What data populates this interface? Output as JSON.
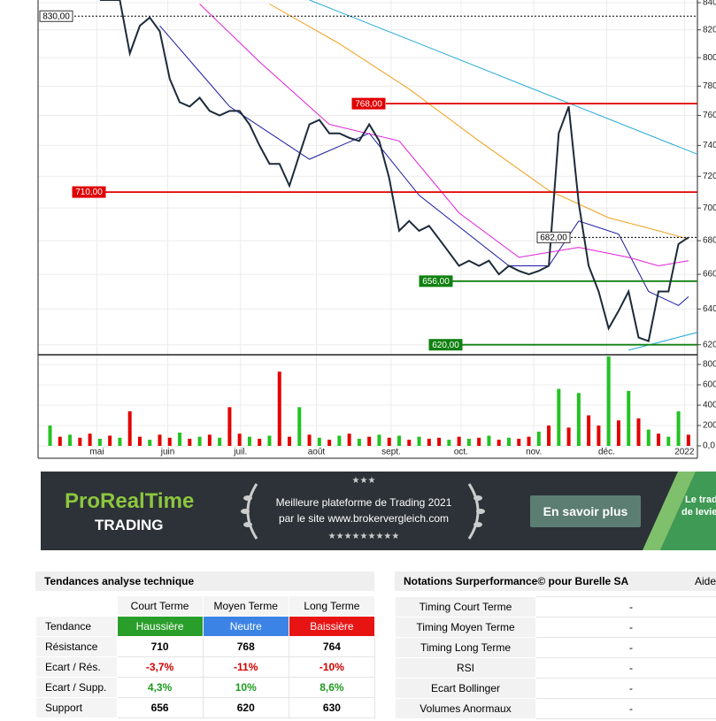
{
  "chart_data": {
    "type": "line",
    "log_scale": true,
    "grid": true,
    "xlim": [
      -6.2,
      59.9
    ],
    "ylim": [
      615,
      842
    ],
    "xticks": [
      {
        "value": -0.3,
        "label": "mai"
      },
      {
        "value": 6.8,
        "label": "juin"
      },
      {
        "value": 14.1,
        "label": "juil."
      },
      {
        "value": 21.7,
        "label": "août"
      },
      {
        "value": 29.2,
        "label": "sept."
      },
      {
        "value": 36.2,
        "label": "oct."
      },
      {
        "value": 43.5,
        "label": "nov."
      },
      {
        "value": 50.8,
        "label": "déc."
      },
      {
        "value": 58.6,
        "label": "2022"
      }
    ],
    "yticks": [
      840,
      820,
      800,
      780,
      760,
      740,
      720,
      700,
      680,
      660,
      640,
      620
    ],
    "price": {
      "color": "#1c2b3a",
      "values": [
        842,
        842,
        842,
        803,
        823,
        829,
        819,
        785,
        769,
        766,
        772,
        763,
        760,
        763,
        763,
        754,
        740,
        728,
        728,
        714,
        734,
        754,
        757,
        748,
        748,
        745,
        743,
        754,
        743,
        719,
        686,
        692,
        686,
        689,
        681,
        673,
        665,
        668,
        665,
        668,
        660,
        665,
        662,
        660,
        662,
        665,
        748,
        766,
        703,
        665,
        650,
        629,
        639,
        650,
        624,
        622,
        650,
        650,
        678,
        682
      ]
    },
    "averages": [
      {
        "color": "#1a1aa0",
        "x": [
          6,
          13,
          21,
          27,
          32,
          41,
          45,
          48,
          52,
          55,
          58,
          59
        ],
        "values": [
          823,
          766,
          731,
          748,
          708,
          665,
          665,
          692,
          684,
          650,
          642,
          647
        ]
      },
      {
        "color": "#e020d8",
        "x": [
          10,
          16,
          23,
          30,
          36,
          42,
          48,
          53,
          56,
          59
        ],
        "values": [
          839,
          797,
          754,
          743,
          697,
          670,
          676,
          670,
          665,
          668
        ]
      },
      {
        "color": "#f0a020",
        "x": [
          17,
          24,
          31,
          38,
          45,
          51,
          56,
          59
        ],
        "values": [
          839,
          810,
          778,
          743,
          711,
          694,
          686,
          681
        ]
      },
      {
        "color": "#22a8d8",
        "x": [
          21,
          60
        ],
        "values": [
          842,
          734
        ]
      },
      {
        "color": "#22a8d8",
        "x": [
          53,
          60
        ],
        "values": [
          617,
          627
        ]
      }
    ],
    "levels": [
      {
        "value": 830,
        "label": "830,00",
        "color": "#000000",
        "dash": true
      },
      {
        "value": 768,
        "label": "768,00",
        "color": "#e00000",
        "dash": false
      },
      {
        "value": 710,
        "label": "710,00",
        "color": "#e00000",
        "dash": false
      },
      {
        "value": 682,
        "label": "682,00",
        "color": "#000000",
        "dash": true
      },
      {
        "value": 656,
        "label": "656,00",
        "color": "#108010",
        "dash": false
      },
      {
        "value": 620,
        "label": "620,00",
        "color": "#108010",
        "dash": false
      }
    ],
    "volume": {
      "ylim": [
        0,
        887
      ],
      "yticks": [
        800,
        600,
        400,
        200,
        {
          "value": 0,
          "label": "0,0"
        }
      ],
      "x": [
        -5,
        -4,
        -3,
        -2,
        -1,
        0,
        1,
        2,
        3,
        4,
        5,
        6,
        7,
        8,
        9,
        10,
        11,
        12,
        13,
        14,
        15,
        16,
        17,
        18,
        19,
        20,
        21,
        22,
        23,
        24,
        25,
        26,
        27,
        28,
        29,
        30,
        31,
        32,
        33,
        34,
        35,
        36,
        37,
        38,
        39,
        40,
        41,
        42,
        43,
        44,
        45,
        46,
        47,
        48,
        49,
        50,
        51,
        52,
        53,
        54,
        55,
        56,
        57,
        58,
        59
      ],
      "values": [
        200,
        90,
        110,
        80,
        120,
        70,
        100,
        80,
        340,
        90,
        60,
        110,
        80,
        130,
        70,
        90,
        110,
        80,
        380,
        120,
        90,
        70,
        100,
        730,
        90,
        380,
        110,
        80,
        60,
        100,
        120,
        70,
        90,
        110,
        80,
        100,
        60,
        90,
        70,
        80,
        60,
        90,
        70,
        80,
        100,
        60,
        80,
        70,
        90,
        140,
        200,
        560,
        180,
        520,
        300,
        200,
        880,
        250,
        540,
        270,
        160,
        120,
        90,
        340,
        110
      ],
      "colors": [
        "#22c322",
        "#e30000",
        "#22c322",
        "#e30000",
        "#e30000",
        "#22c322",
        "#e30000",
        "#22c322",
        "#e30000",
        "#e30000",
        "#22c322",
        "#e30000",
        "#e30000",
        "#22c322",
        "#e30000",
        "#22c322",
        "#e30000",
        "#22c322",
        "#e30000",
        "#e30000",
        "#22c322",
        "#e30000",
        "#22c322",
        "#e30000",
        "#e30000",
        "#22c322",
        "#e30000",
        "#22c322",
        "#e30000",
        "#22c322",
        "#e30000",
        "#22c322",
        "#e30000",
        "#22c322",
        "#e30000",
        "#22c322",
        "#e30000",
        "#22c322",
        "#e30000",
        "#e30000",
        "#22c322",
        "#e30000",
        "#22c322",
        "#e30000",
        "#22c322",
        "#e30000",
        "#22c322",
        "#e30000",
        "#e30000",
        "#22c322",
        "#e30000",
        "#22c322",
        "#e30000",
        "#22c322",
        "#e30000",
        "#e30000",
        "#22c322",
        "#e30000",
        "#22c322",
        "#e30000",
        "#22c322",
        "#e30000",
        "#22c322",
        "#22c322",
        "#e30000"
      ]
    }
  },
  "banner": {
    "brand": "ProRealTime",
    "sub": "TRADING",
    "stars_top": "★★★",
    "line1": "Meilleure plateforme de Trading 2021",
    "line2": "par le site www.brokervergleich.com",
    "stars_bottom": "★★★★★★★★★",
    "button": "En savoir plus",
    "side1": "Le trad",
    "side2": "de levie"
  },
  "trend_table": {
    "title": "Tendances analyse technique",
    "columns": [
      "Court Terme",
      "Moyen Terme",
      "Long Terme"
    ],
    "rows": [
      [
        "Tendance",
        "Haussière",
        "Neutre",
        "Baissière"
      ],
      [
        "Résistance",
        "710",
        "768",
        "764"
      ],
      [
        "Ecart / Rés.",
        "-3,7%",
        "-11%",
        "-10%"
      ],
      [
        "Ecart / Supp.",
        "4,3%",
        "10%",
        "8,6%"
      ],
      [
        "Support",
        "656",
        "620",
        "630"
      ]
    ]
  },
  "ratings_table": {
    "title": "Notations Surperformance© pour Burelle SA",
    "help": "Aide",
    "rows": [
      [
        "Timing Court Terme",
        "-"
      ],
      [
        "Timing Moyen Terme",
        "-"
      ],
      [
        "Timing Long Terme",
        "-"
      ],
      [
        "RSI",
        "-"
      ],
      [
        "Ecart Bollinger",
        "-"
      ],
      [
        "Volumes Anormaux",
        "-"
      ]
    ]
  }
}
